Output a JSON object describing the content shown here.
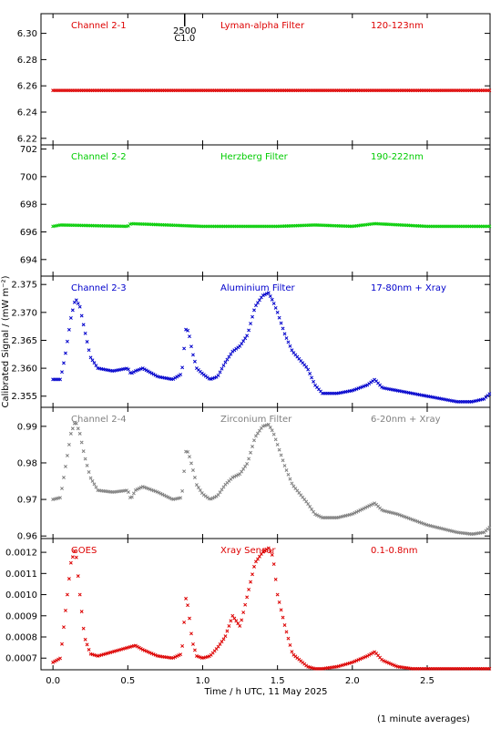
{
  "chart_data": {
    "type": "scatter",
    "xlabel": "Time / h UTC, 11 May 2025",
    "ylabel": "Calibrated Signal / (mW m⁻²)",
    "footnote": "(1 minute averages)",
    "xlim": [
      -0.08,
      2.92
    ],
    "xticks": [
      0.0,
      0.5,
      1.0,
      1.5,
      2.0,
      2.5
    ],
    "xtick_labels": [
      "0.0",
      "0.5",
      "1.0",
      "1.5",
      "2.0",
      "2.5"
    ],
    "marker_text": [
      "2500",
      "C1.0"
    ],
    "marker_x": 0.88,
    "panels": [
      {
        "channel": "Channel 2-1",
        "filter": "Lyman-alpha Filter",
        "band": "120-123nm",
        "color": "#dd0000",
        "ylim": [
          6.215,
          6.315
        ],
        "yticks": [
          6.22,
          6.24,
          6.26,
          6.28,
          6.3
        ],
        "ytick_labels": [
          "6.22",
          "6.24",
          "6.26",
          "6.28",
          "6.30"
        ],
        "x": [
          0.0,
          0.5,
          1.0,
          1.5,
          2.0,
          2.5,
          2.92
        ],
        "y": [
          6.2565,
          6.2565,
          6.2565,
          6.2565,
          6.2565,
          6.2565,
          6.2565
        ]
      },
      {
        "channel": "Channel 2-2",
        "filter": "Herzberg Filter",
        "band": "190-222nm",
        "color": "#00cc00",
        "ylim": [
          692.8,
          702.3
        ],
        "yticks": [
          694,
          696,
          698,
          700,
          702
        ],
        "ytick_labels": [
          "694",
          "696",
          "698",
          "700",
          "702"
        ],
        "x": [
          0.0,
          0.05,
          0.5,
          0.52,
          1.0,
          1.5,
          1.75,
          2.0,
          2.15,
          2.5,
          2.92
        ],
        "y": [
          696.4,
          696.5,
          696.4,
          696.6,
          696.4,
          696.4,
          696.5,
          696.4,
          696.6,
          696.4,
          696.4
        ]
      },
      {
        "channel": "Channel 2-3",
        "filter": "Aluminium Filter",
        "band": "17-80nm + Xray",
        "color": "#0000cc",
        "ylim": [
          2.353,
          2.3765
        ],
        "yticks": [
          2.355,
          2.36,
          2.365,
          2.37,
          2.375
        ],
        "ytick_labels": [
          "2.355",
          "2.360",
          "2.365",
          "2.370",
          "2.375"
        ],
        "x": [
          0.0,
          0.05,
          0.08,
          0.12,
          0.15,
          0.18,
          0.21,
          0.25,
          0.3,
          0.4,
          0.5,
          0.52,
          0.55,
          0.6,
          0.7,
          0.8,
          0.86,
          0.89,
          0.91,
          0.93,
          0.96,
          1.0,
          1.05,
          1.1,
          1.15,
          1.2,
          1.25,
          1.3,
          1.35,
          1.4,
          1.44,
          1.47,
          1.5,
          1.55,
          1.6,
          1.7,
          1.75,
          1.8,
          1.9,
          2.0,
          2.1,
          2.15,
          2.2,
          2.3,
          2.4,
          2.5,
          2.6,
          2.7,
          2.8,
          2.88,
          2.92
        ],
        "y": [
          2.358,
          2.358,
          2.362,
          2.369,
          2.3725,
          2.371,
          2.367,
          2.362,
          2.36,
          2.3595,
          2.36,
          2.359,
          2.3595,
          2.36,
          2.3585,
          2.358,
          2.359,
          2.3675,
          2.366,
          2.363,
          2.36,
          2.359,
          2.358,
          2.3585,
          2.361,
          2.363,
          2.364,
          2.366,
          2.371,
          2.373,
          2.3735,
          2.372,
          2.37,
          2.366,
          2.363,
          2.36,
          2.357,
          2.3555,
          2.3555,
          2.356,
          2.357,
          2.358,
          2.3565,
          2.356,
          2.3555,
          2.355,
          2.3545,
          2.354,
          2.354,
          2.3545,
          2.3555
        ]
      },
      {
        "channel": "Channel 2-4",
        "filter": "Zirconium Filter",
        "band": "6-20nm + Xray",
        "color": "#808080",
        "ylim": [
          0.9593,
          0.9952
        ],
        "yticks": [
          0.96,
          0.97,
          0.98,
          0.99
        ],
        "ytick_labels": [
          "0.96",
          "0.97",
          "0.98",
          "0.99"
        ],
        "x": [
          0.0,
          0.05,
          0.08,
          0.12,
          0.15,
          0.18,
          0.21,
          0.25,
          0.3,
          0.4,
          0.5,
          0.52,
          0.55,
          0.6,
          0.7,
          0.8,
          0.86,
          0.89,
          0.91,
          0.93,
          0.96,
          1.0,
          1.05,
          1.1,
          1.15,
          1.2,
          1.25,
          1.3,
          1.35,
          1.4,
          1.44,
          1.47,
          1.5,
          1.55,
          1.6,
          1.7,
          1.75,
          1.8,
          1.9,
          2.0,
          2.1,
          2.15,
          2.2,
          2.3,
          2.4,
          2.5,
          2.6,
          2.7,
          2.8,
          2.88,
          2.92
        ],
        "y": [
          0.97,
          0.9705,
          0.978,
          0.988,
          0.9915,
          0.988,
          0.982,
          0.976,
          0.9725,
          0.972,
          0.9725,
          0.97,
          0.9725,
          0.9735,
          0.972,
          0.97,
          0.9705,
          0.984,
          0.982,
          0.979,
          0.974,
          0.9715,
          0.97,
          0.971,
          0.974,
          0.976,
          0.977,
          0.98,
          0.987,
          0.99,
          0.9905,
          0.9885,
          0.985,
          0.979,
          0.974,
          0.969,
          0.966,
          0.965,
          0.965,
          0.966,
          0.968,
          0.969,
          0.967,
          0.966,
          0.9645,
          0.963,
          0.962,
          0.961,
          0.9605,
          0.961,
          0.9625
        ]
      },
      {
        "channel": "GOES",
        "filter": "Xray Sensor",
        "band": "0.1-0.8nm",
        "color": "#dd0000",
        "ylim": [
          0.000645,
          0.001265
        ],
        "yticks": [
          0.0007,
          0.0008,
          0.0009,
          0.001,
          0.0011,
          0.0012
        ],
        "ytick_labels": [
          "0.0007",
          "0.0008",
          "0.0009",
          "0.0010",
          "0.0011",
          "0.0012"
        ],
        "x": [
          0.0,
          0.05,
          0.08,
          0.12,
          0.15,
          0.18,
          0.21,
          0.25,
          0.3,
          0.4,
          0.5,
          0.55,
          0.6,
          0.7,
          0.8,
          0.86,
          0.89,
          0.91,
          0.93,
          0.96,
          1.0,
          1.05,
          1.1,
          1.15,
          1.2,
          1.25,
          1.3,
          1.35,
          1.4,
          1.44,
          1.47,
          1.5,
          1.55,
          1.6,
          1.7,
          1.75,
          1.8,
          1.9,
          2.0,
          2.1,
          2.15,
          2.2,
          2.3,
          2.4,
          2.5,
          2.6,
          2.7,
          2.8,
          2.88,
          2.92
        ],
        "y": [
          0.00068,
          0.0007,
          0.0009,
          0.00115,
          0.00122,
          0.001,
          0.0008,
          0.00072,
          0.00071,
          0.00073,
          0.00075,
          0.00076,
          0.00074,
          0.00071,
          0.0007,
          0.00072,
          0.001,
          0.0009,
          0.00078,
          0.00071,
          0.0007,
          0.00071,
          0.00075,
          0.0008,
          0.0009,
          0.00085,
          0.001,
          0.00115,
          0.0012,
          0.00122,
          0.00118,
          0.001,
          0.00085,
          0.00072,
          0.00066,
          0.00065,
          0.00065,
          0.00066,
          0.00068,
          0.00071,
          0.00073,
          0.00069,
          0.00066,
          0.00065,
          0.00065,
          0.00065,
          0.00065,
          0.00065,
          0.00065,
          0.00065
        ]
      }
    ]
  }
}
